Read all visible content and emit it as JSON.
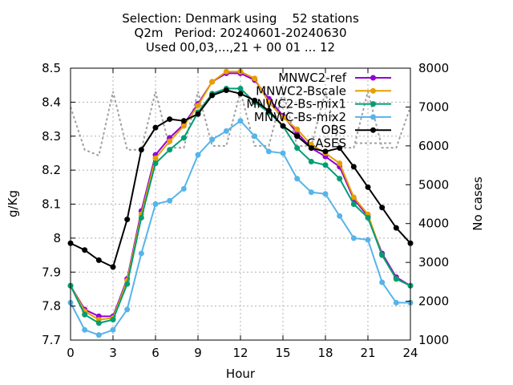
{
  "chart_data": {
    "type": "line",
    "title_lines": [
      "Selection: Denmark using    52 stations",
      "Q2m   Period: 20240601-20240630",
      "Used 00,03,...,21 + 00 01 ... 12"
    ],
    "xlabel": "Hour",
    "ylabel": "g/Kg",
    "y2label": "No cases",
    "xlim": [
      0,
      24
    ],
    "ylim": [
      7.7,
      8.5
    ],
    "y2lim": [
      1000,
      8000
    ],
    "xticks": [
      "0",
      "3",
      "6",
      "9",
      "12",
      "15",
      "18",
      "21",
      "24"
    ],
    "yticks": [
      "7.7",
      "7.8",
      "7.9",
      "8",
      "8.1",
      "8.2",
      "8.3",
      "8.4",
      "8.5"
    ],
    "y2ticks": [
      "1000",
      "2000",
      "3000",
      "4000",
      "5000",
      "6000",
      "7000",
      "8000"
    ],
    "grid": true,
    "legend_position": "top-right",
    "x": [
      0,
      1,
      2,
      3,
      4,
      5,
      6,
      7,
      8,
      9,
      10,
      11,
      12,
      13,
      14,
      15,
      16,
      17,
      18,
      19,
      20,
      21,
      22,
      23,
      24
    ],
    "series": [
      {
        "name": "MNWC2-ref",
        "color": "#9400d3",
        "marker": "filled-circle",
        "values": [
          7.86,
          7.79,
          7.77,
          7.77,
          7.88,
          8.08,
          8.245,
          8.295,
          8.335,
          8.395,
          8.46,
          8.485,
          8.485,
          8.465,
          8.41,
          8.36,
          8.31,
          8.265,
          8.24,
          8.21,
          8.115,
          8.065,
          7.955,
          7.885,
          7.86
        ]
      },
      {
        "name": "MNWC2-Bscale",
        "color": "#e69f00",
        "marker": "filled-circle",
        "values": [
          7.86,
          7.785,
          7.76,
          7.765,
          7.875,
          8.07,
          8.235,
          8.285,
          8.33,
          8.39,
          8.46,
          8.49,
          8.49,
          8.47,
          8.4,
          8.355,
          8.32,
          8.275,
          8.25,
          8.22,
          8.12,
          8.07,
          7.95,
          7.88,
          7.86
        ]
      },
      {
        "name": "MNWC2-Bs-mix1",
        "color": "#009e73",
        "marker": "filled-circle",
        "values": [
          7.86,
          7.775,
          7.75,
          7.76,
          7.865,
          8.06,
          8.22,
          8.26,
          8.295,
          8.37,
          8.425,
          8.44,
          8.44,
          8.4,
          8.37,
          8.33,
          8.265,
          8.225,
          8.215,
          8.175,
          8.1,
          8.06,
          7.95,
          7.88,
          7.86
        ]
      },
      {
        "name": "MNWC-Bs-mix2",
        "color": "#56b4e9",
        "marker": "filled-circle",
        "values": [
          7.81,
          7.73,
          7.715,
          7.73,
          7.79,
          7.955,
          8.1,
          8.11,
          8.145,
          8.245,
          8.29,
          8.315,
          8.345,
          8.3,
          8.255,
          8.25,
          8.175,
          8.135,
          8.13,
          8.065,
          8.0,
          7.995,
          7.87,
          7.81,
          7.81
        ]
      },
      {
        "name": "OBS",
        "color": "#000000",
        "marker": "filled-circle",
        "values": [
          7.985,
          7.965,
          7.935,
          7.915,
          8.055,
          8.26,
          8.325,
          8.35,
          8.345,
          8.365,
          8.42,
          8.435,
          8.425,
          8.405,
          8.375,
          8.33,
          8.3,
          8.265,
          8.255,
          8.265,
          8.21,
          8.15,
          8.09,
          8.03,
          7.985
        ]
      }
    ],
    "cases": {
      "name": "CASES",
      "color": "#a0a0a0",
      "axis": "y2",
      "style": "dotted",
      "values": [
        7000,
        5900,
        5750,
        7400,
        5900,
        5900,
        7400,
        5950,
        5950,
        7400,
        6000,
        6000,
        7400,
        6000,
        6000,
        7400,
        6000,
        6000,
        7400,
        5950,
        5950,
        7400,
        5950,
        5950,
        7000
      ]
    }
  }
}
